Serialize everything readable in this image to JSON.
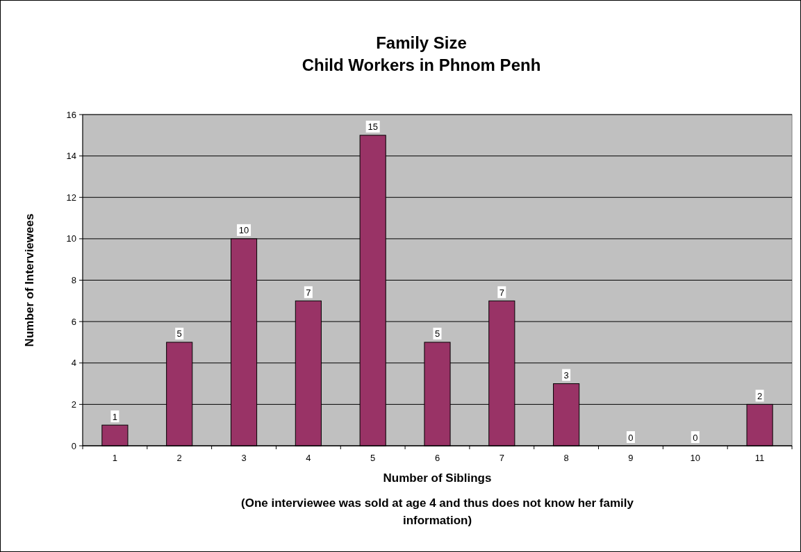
{
  "chart_data": {
    "type": "bar",
    "title": "Family Size\nChild Workers in Phnom Penh",
    "xlabel": "Number of Siblings",
    "ylabel": "Number of Interviewees",
    "annotations": [
      "(One interviewee was sold at age 4 and thus does not know her family information)"
    ],
    "categories": [
      "1",
      "2",
      "3",
      "4",
      "5",
      "6",
      "7",
      "8",
      "9",
      "10",
      "11"
    ],
    "values": [
      1,
      5,
      10,
      7,
      15,
      5,
      7,
      3,
      0,
      0,
      2
    ],
    "color": "#993366",
    "ylim": [
      0,
      16
    ],
    "yticks": [
      0,
      2,
      4,
      6,
      8,
      10,
      12,
      14,
      16
    ],
    "grid": "y",
    "data_labels": true
  }
}
